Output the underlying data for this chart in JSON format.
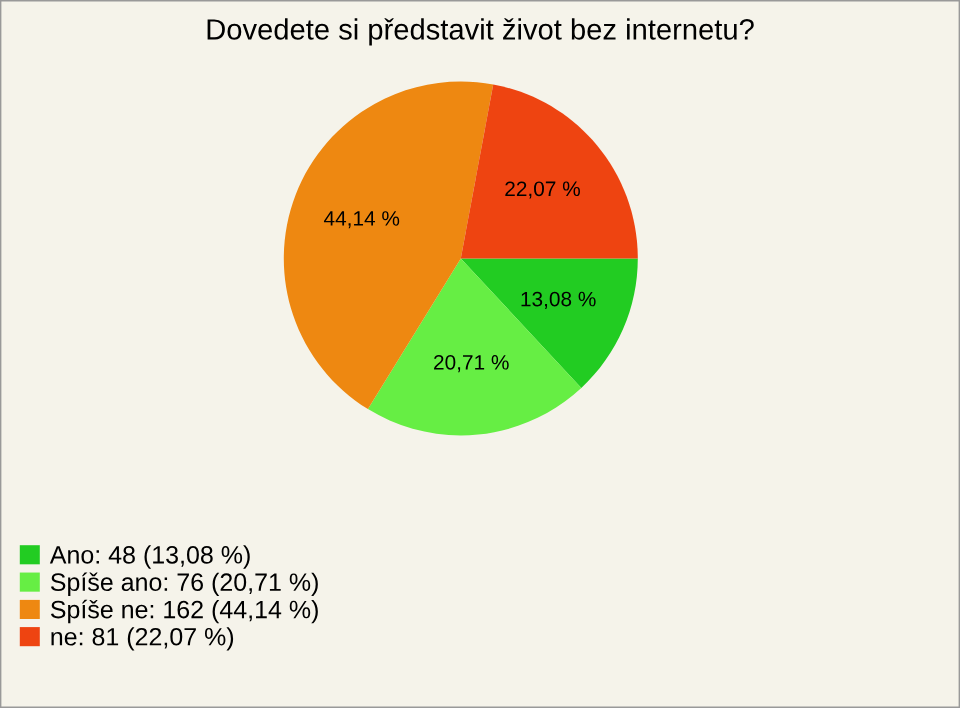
{
  "chart_data": {
    "type": "pie",
    "title": "Dovedete si představit život bez internetu?",
    "categories": [
      "Ano: 48 (13,08 %)",
      "Spíše ano: 76 (20,71 %)",
      "Spíše ne: 162 (44,14 %)",
      "ne: 81 (22,07 %)"
    ],
    "values": [
      13.08,
      20.71,
      44.14,
      22.07
    ],
    "value_labels": [
      "13,08 %",
      "20,71 %",
      "44,14 %",
      "22,07 %"
    ],
    "colors": [
      "#22cc22",
      "#66ee44",
      "#ee8811",
      "#ee4411"
    ],
    "legend": "bottom left"
  }
}
